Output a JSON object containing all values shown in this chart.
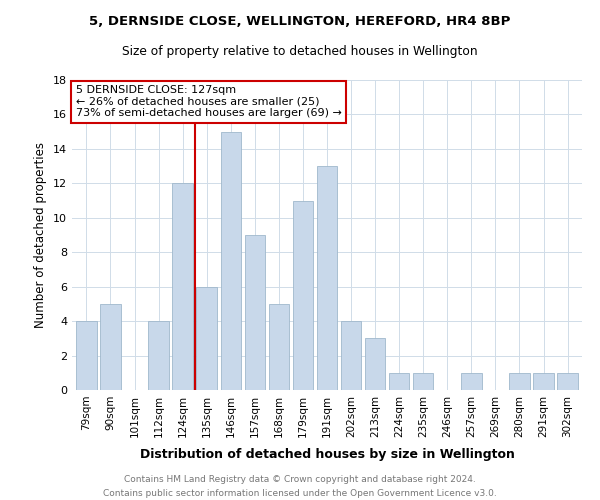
{
  "title1": "5, DERNSIDE CLOSE, WELLINGTON, HEREFORD, HR4 8BP",
  "title2": "Size of property relative to detached houses in Wellington",
  "xlabel": "Distribution of detached houses by size in Wellington",
  "ylabel": "Number of detached properties",
  "bar_labels": [
    "79sqm",
    "90sqm",
    "101sqm",
    "112sqm",
    "124sqm",
    "135sqm",
    "146sqm",
    "157sqm",
    "168sqm",
    "179sqm",
    "191sqm",
    "202sqm",
    "213sqm",
    "224sqm",
    "235sqm",
    "246sqm",
    "257sqm",
    "269sqm",
    "280sqm",
    "291sqm",
    "302sqm"
  ],
  "bar_values": [
    4,
    5,
    0,
    4,
    12,
    6,
    15,
    9,
    5,
    11,
    13,
    4,
    3,
    1,
    1,
    0,
    1,
    0,
    1,
    1,
    1
  ],
  "bar_color": "#c8d8ea",
  "bar_edge_color": "#a0b8cc",
  "vline_x": 4.5,
  "vline_color": "#cc0000",
  "annotation_line1": "5 DERNSIDE CLOSE: 127sqm",
  "annotation_line2": "← 26% of detached houses are smaller (25)",
  "annotation_line3": "73% of semi-detached houses are larger (69) →",
  "annotation_box_edge": "#cc0000",
  "ylim": [
    0,
    18
  ],
  "yticks": [
    0,
    2,
    4,
    6,
    8,
    10,
    12,
    14,
    16,
    18
  ],
  "footer1": "Contains HM Land Registry data © Crown copyright and database right 2024.",
  "footer2": "Contains public sector information licensed under the Open Government Licence v3.0.",
  "bg_color": "#ffffff",
  "grid_color": "#d0dce8"
}
